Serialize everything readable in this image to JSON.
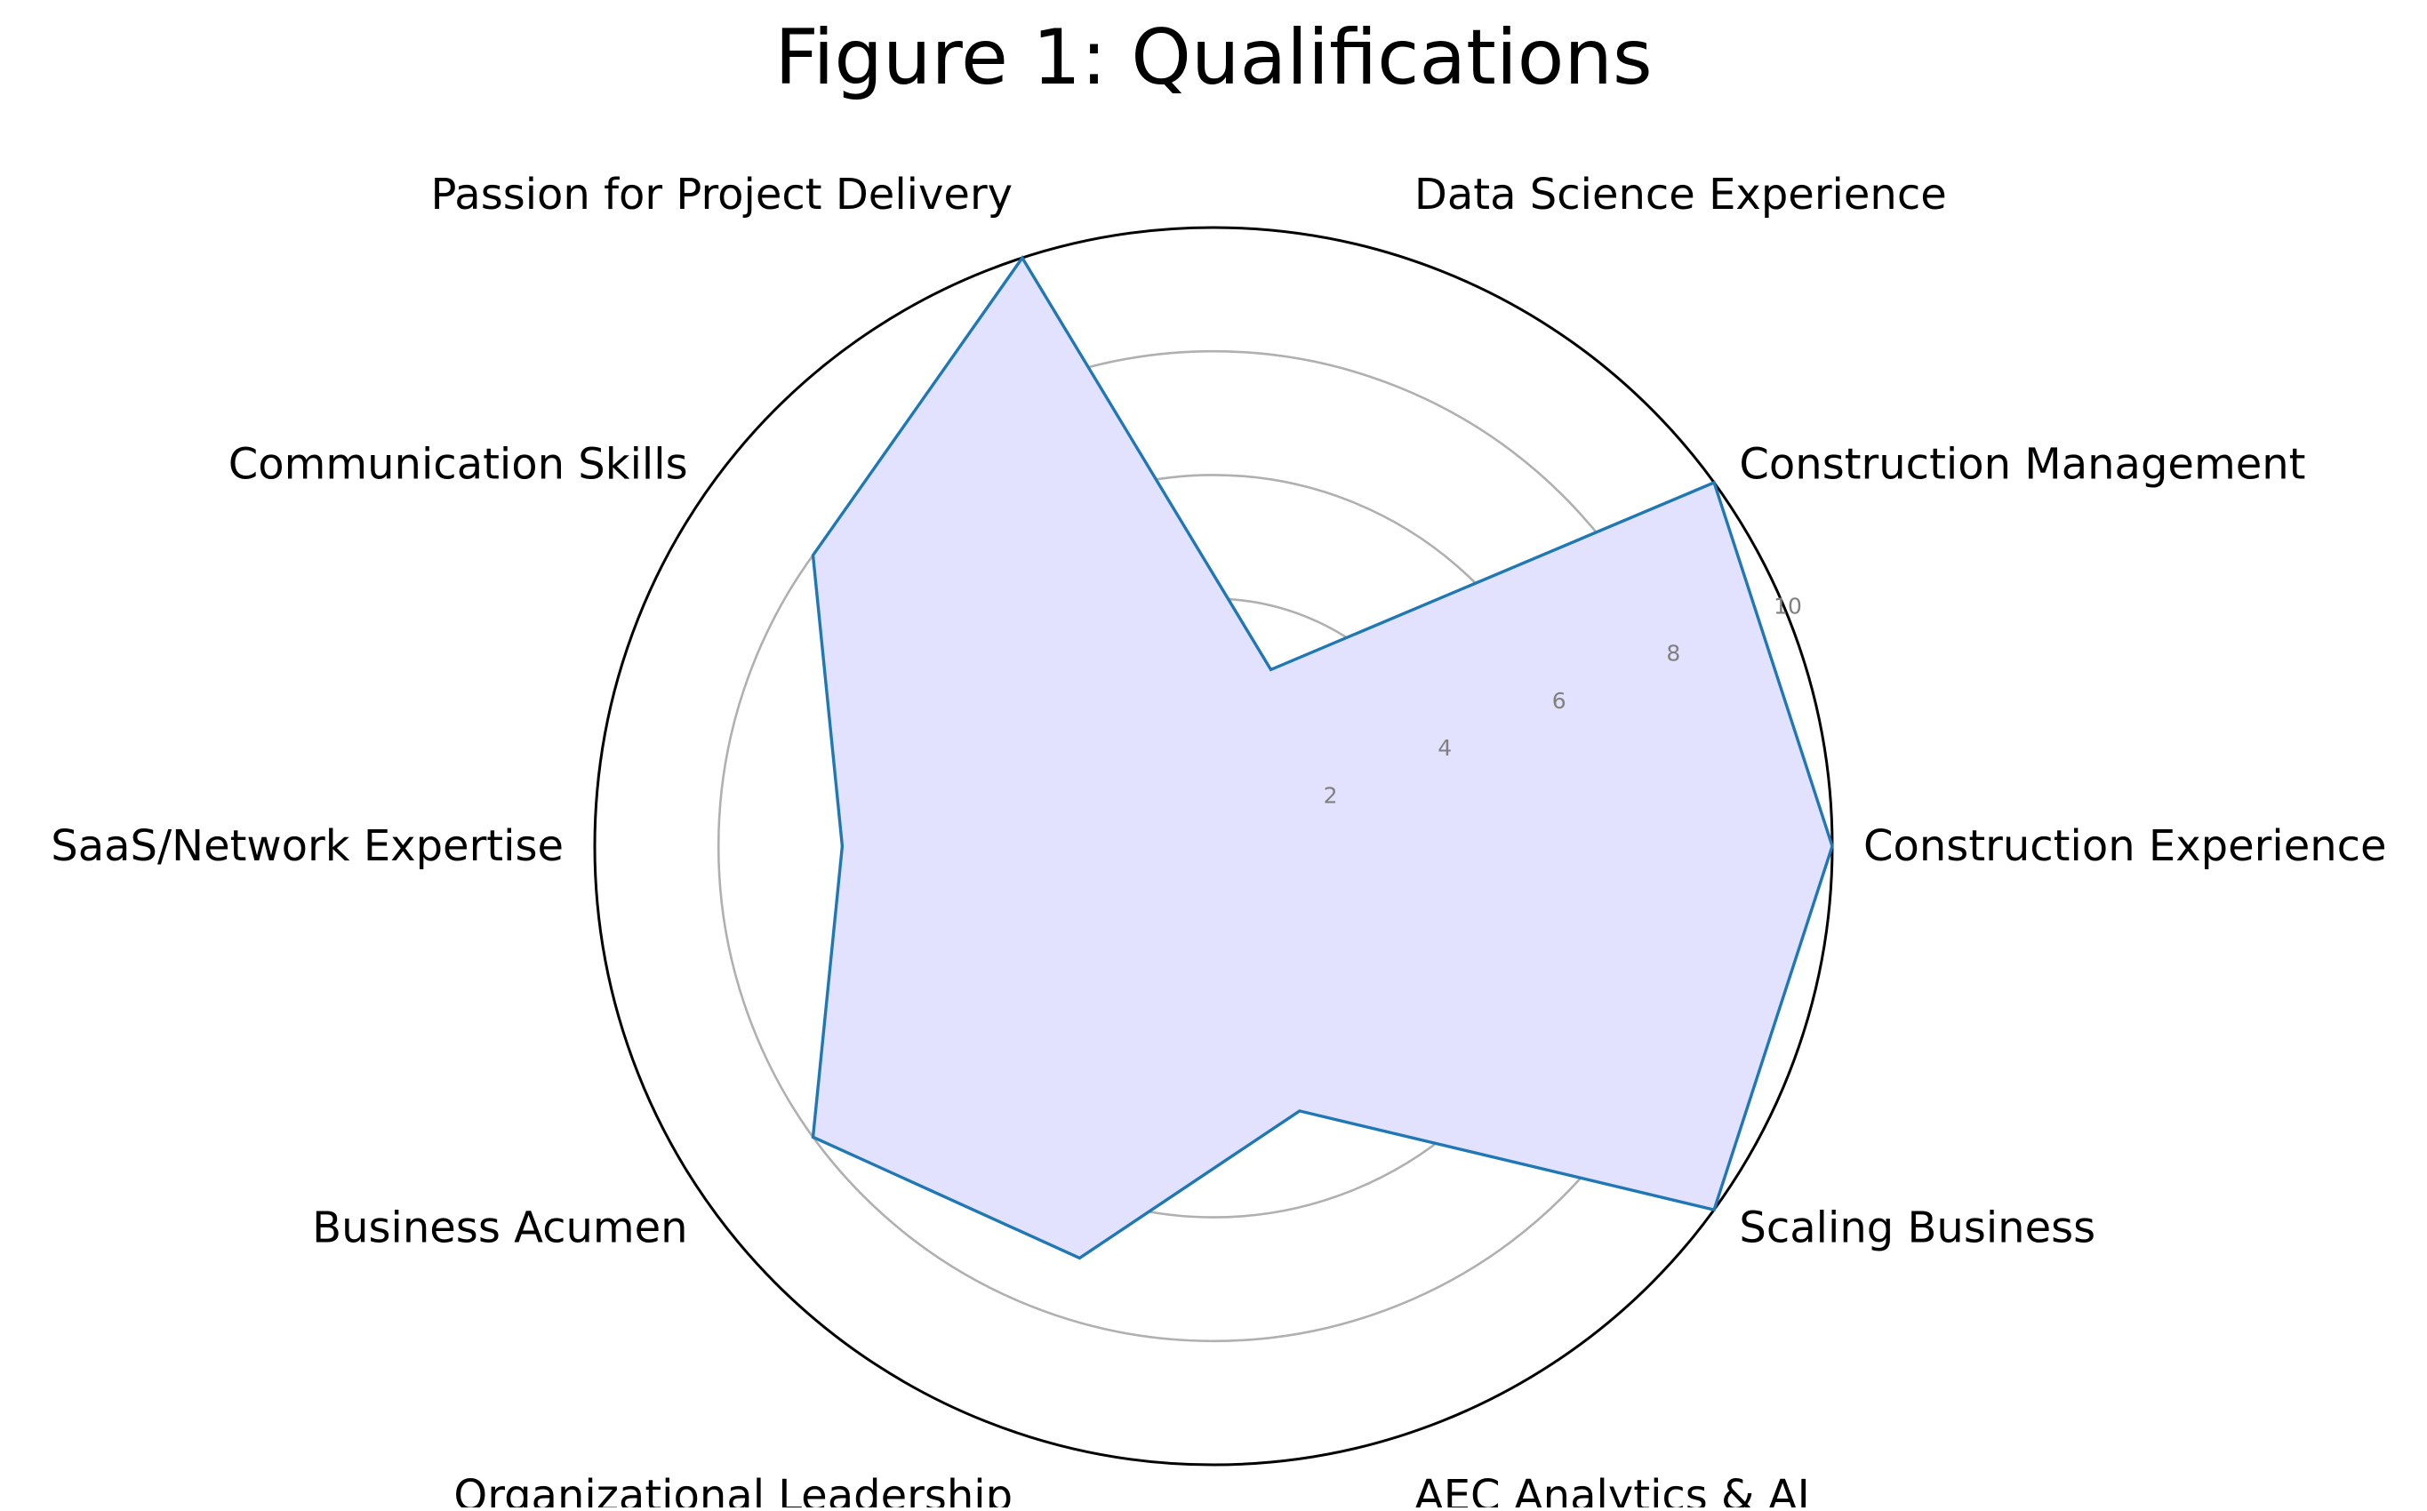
{
  "chart_data": {
    "type": "radar",
    "title": "Figure 1: Qualifications",
    "categories": [
      "Construction Experience",
      "Construction Management",
      "Data Science Experience",
      "Passion for Project Delivery",
      "Communication Skills",
      "SaaS/Network Expertise",
      "Business Acumen",
      "Organizational Leadership",
      "AEC Analytics & AI",
      "Scaling Business"
    ],
    "series": [
      {
        "values": [
          10,
          10,
          3,
          10,
          8,
          6,
          8,
          7,
          4.5,
          10
        ]
      }
    ],
    "rlim": [
      0,
      10
    ],
    "rticks": [
      2,
      4,
      6,
      8,
      10
    ],
    "grid": true,
    "colors": {
      "line": "#1f77b4",
      "fill": "#e2e2ff",
      "grid": "#b0b0b0",
      "outer_ring": "#000000",
      "tick_label": "#808080",
      "text": "#000000"
    }
  }
}
